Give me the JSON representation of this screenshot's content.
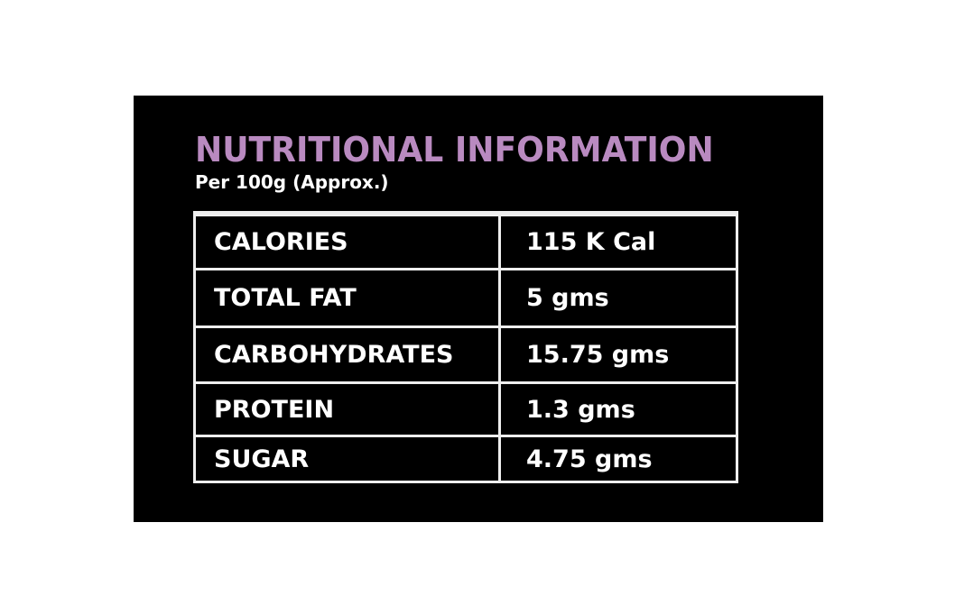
{
  "header": {
    "title": "NUTRITIONAL INFORMATION",
    "subtitle": "Per 100g (Approx.)"
  },
  "table": {
    "rows": [
      [
        "CALORIES",
        "115 K Cal"
      ],
      [
        "TOTAL FAT",
        "5 gms"
      ],
      [
        "CARBOHYDRATES",
        "15.75 gms"
      ],
      [
        "PROTEIN",
        "1.3 gms"
      ],
      [
        "SUGAR",
        "4.75 gms"
      ]
    ]
  }
}
